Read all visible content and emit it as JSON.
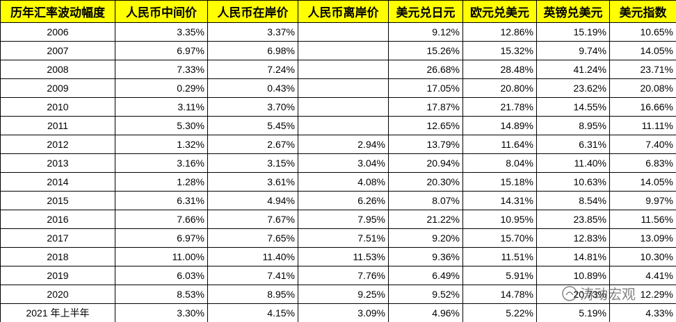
{
  "table": {
    "header": [
      "历年汇率波动幅度",
      "人民币中间价",
      "人民币在岸价",
      "人民币离岸价",
      "美元兑日元",
      "欧元兑美元",
      "英镑兑美元",
      "美元指数"
    ],
    "rows": [
      [
        "2006",
        "3.35%",
        "3.37%",
        null,
        "9.12%",
        "12.86%",
        "15.19%",
        "10.65%"
      ],
      [
        "2007",
        "6.97%",
        "6.98%",
        null,
        "15.26%",
        "15.32%",
        "9.74%",
        "14.05%"
      ],
      [
        "2008",
        "7.33%",
        "7.24%",
        null,
        "26.68%",
        "28.48%",
        "41.24%",
        "23.71%"
      ],
      [
        "2009",
        "0.29%",
        "0.43%",
        null,
        "17.05%",
        "20.80%",
        "23.62%",
        "20.08%"
      ],
      [
        "2010",
        "3.11%",
        "3.70%",
        null,
        "17.87%",
        "21.78%",
        "14.55%",
        "16.66%"
      ],
      [
        "2011",
        "5.30%",
        "5.45%",
        null,
        "12.65%",
        "14.89%",
        "8.95%",
        "11.11%"
      ],
      [
        "2012",
        "1.32%",
        "2.67%",
        "2.94%",
        "13.79%",
        "11.64%",
        "6.31%",
        "7.40%"
      ],
      [
        "2013",
        "3.16%",
        "3.15%",
        "3.04%",
        "20.94%",
        "8.04%",
        "11.40%",
        "6.83%"
      ],
      [
        "2014",
        "1.28%",
        "3.61%",
        "4.08%",
        "20.30%",
        "15.18%",
        "10.63%",
        "14.05%"
      ],
      [
        "2015",
        "6.31%",
        "4.94%",
        "6.26%",
        "8.07%",
        "14.31%",
        "8.54%",
        "9.97%"
      ],
      [
        "2016",
        "7.66%",
        "7.67%",
        "7.95%",
        "21.22%",
        "10.95%",
        "23.85%",
        "11.56%"
      ],
      [
        "2017",
        "6.97%",
        "7.65%",
        "7.51%",
        "9.20%",
        "15.70%",
        "12.83%",
        "13.09%"
      ],
      [
        "2018",
        "11.00%",
        "11.40%",
        "11.53%",
        "9.36%",
        "11.51%",
        "14.81%",
        "10.30%"
      ],
      [
        "2019",
        "6.03%",
        "7.41%",
        "7.76%",
        "6.49%",
        "5.91%",
        "10.89%",
        "4.41%"
      ],
      [
        "2020",
        "8.53%",
        "8.95%",
        "9.25%",
        "9.52%",
        "14.78%",
        "20.73%",
        "12.29%"
      ],
      [
        "2021 年上半年",
        "3.30%",
        "4.15%",
        "3.09%",
        "4.96%",
        "5.22%",
        "5.19%",
        "4.33%"
      ]
    ]
  },
  "watermark": {
    "text": "涛动宏观"
  }
}
